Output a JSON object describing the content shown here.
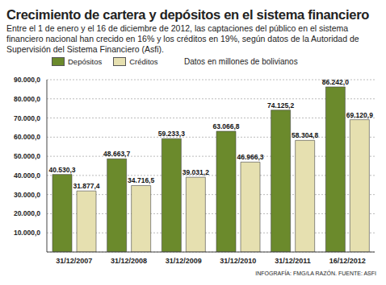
{
  "chart_data": {
    "type": "bar",
    "title": "Crecimiento de cartera y depósitos en el sistema financiero",
    "subtitle": "Entre el 1 de enero y el 16 de diciembre de 2012, las captaciones del público en el sistema financiero nacional han crecido en 16% y los créditos en 19%, según datos de la Autoridad de Supervisión del Sistema Financiero (Asfi).",
    "annotations": [
      "Datos en millones de bolivianos",
      "INFOGRAFÍA: FMG/LA RAZÓN. FUENTE: ASFI"
    ],
    "categories": [
      "31/12/2007",
      "31/12/2008",
      "31/12/2009",
      "31/12/2010",
      "31/12/2011",
      "16/12/2012"
    ],
    "series": [
      {
        "name": "Depósitos",
        "color": "#6b8a2c",
        "values": [
          40530.3,
          48663.7,
          59233.3,
          63066.8,
          74125.2,
          86242.0
        ],
        "value_labels": [
          "40.530,3",
          "48.663,7",
          "59.233,3",
          "63.066,8",
          "74.125,2",
          "86.242,0"
        ]
      },
      {
        "name": "Créditos",
        "color": "#e6e0b0",
        "values": [
          31877.4,
          34716.5,
          39031.2,
          46966.3,
          58304.8,
          69120.9
        ],
        "value_labels": [
          "31.877,4",
          "34.716,5",
          "39.031,2",
          "46.966,3",
          "58.304,8",
          "69.120,9"
        ]
      }
    ],
    "ylim": [
      0,
      90000
    ],
    "yticks": [
      {
        "value": 10000,
        "label": "10.000,0"
      },
      {
        "value": 20000,
        "label": "20.000,0"
      },
      {
        "value": 30000,
        "label": "30.000,0"
      },
      {
        "value": 40000,
        "label": "40.000,0"
      },
      {
        "value": 50000,
        "label": "50.000,0"
      },
      {
        "value": 60000,
        "label": "60.000,0"
      },
      {
        "value": 70000,
        "label": "70.000,0"
      },
      {
        "value": 80000,
        "label": "80.000,0"
      },
      {
        "value": 90000,
        "label": "90.000,0"
      }
    ],
    "grid": true,
    "legend": "top-left",
    "data_labels": true
  }
}
